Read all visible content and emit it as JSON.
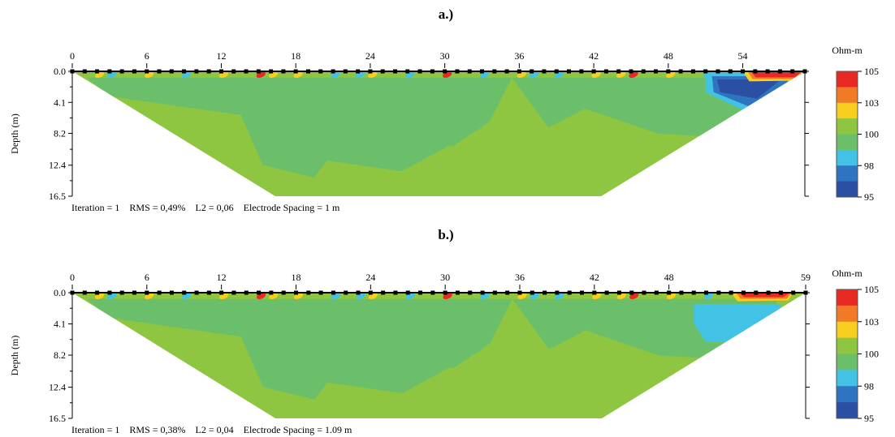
{
  "chart_data": [
    {
      "type": "heatmap",
      "panel_label": "a.)",
      "xlabel": "",
      "ylabel": "Depth (m)",
      "x_ticks": [
        "0",
        "6",
        "12",
        "18",
        "24",
        "30",
        "36",
        "42",
        "48",
        "54"
      ],
      "x_tick_values": [
        0,
        6,
        12,
        18,
        24,
        30,
        36,
        42,
        48,
        54
      ],
      "xlim": [
        0,
        59
      ],
      "y_ticks": [
        "0.0",
        "4.1",
        "8.2",
        "12.4",
        "16.5"
      ],
      "y_tick_values": [
        0.0,
        4.1,
        8.2,
        12.4,
        16.5
      ],
      "ylim": [
        0,
        16.5
      ],
      "electrode_count": 60,
      "info": "Iteration = 1    RMS = 0,49%    L2 = 0,06    Electrode Spacing = 1 m",
      "colorbar": {
        "title": "Ohm-m",
        "labels": [
          "105",
          "103",
          "100",
          "98",
          "95"
        ],
        "label_values": [
          105,
          103,
          100,
          98,
          95
        ],
        "colors": [
          "#e92a24",
          "#f07a25",
          "#f8ce1f",
          "#8ec641",
          "#6cbf6a",
          "#42c3e6",
          "#2f74c0",
          "#2a4fa3"
        ]
      },
      "anomalies": [
        {
          "name": "low-resistivity zone",
          "x_range": [
            51,
            58
          ],
          "depth_range": [
            0,
            5.5
          ],
          "value_range": [
            95,
            98
          ]
        },
        {
          "name": "high-resistivity surface zone",
          "x_range": [
            54,
            59
          ],
          "depth_range": [
            0,
            1.0
          ],
          "value_range": [
            103,
            105
          ]
        }
      ]
    },
    {
      "type": "heatmap",
      "panel_label": "b.)",
      "xlabel": "",
      "ylabel": "Depth (m)",
      "x_ticks": [
        "0",
        "6",
        "12",
        "18",
        "24",
        "30",
        "36",
        "42",
        "48",
        "59"
      ],
      "x_tick_values": [
        0,
        6,
        12,
        18,
        24,
        30,
        36,
        42,
        48,
        59
      ],
      "xlim": [
        0,
        59
      ],
      "y_ticks": [
        "0.0",
        "4.1",
        "8.2",
        "12.4",
        "16.5"
      ],
      "y_tick_values": [
        0.0,
        4.1,
        8.2,
        12.4,
        16.5
      ],
      "ylim": [
        0,
        16.5
      ],
      "electrode_count": 60,
      "info": "Iteration = 1    RMS = 0,38%    L2 = 0,04    Electrode Spacing = 1.09 m",
      "colorbar": {
        "title": "Ohm-m",
        "labels": [
          "105",
          "103",
          "100",
          "98",
          "95"
        ],
        "label_values": [
          105,
          103,
          100,
          98,
          95
        ],
        "colors": [
          "#e92a24",
          "#f07a25",
          "#f8ce1f",
          "#8ec641",
          "#6cbf6a",
          "#42c3e6",
          "#2f74c0",
          "#2a4fa3"
        ]
      },
      "anomalies": [
        {
          "name": "low-resistivity zone",
          "x_range": [
            50,
            57
          ],
          "depth_range": [
            1.5,
            6.5
          ],
          "value_range": [
            98,
            99
          ]
        },
        {
          "name": "high-resistivity surface zone",
          "x_range": [
            53,
            58
          ],
          "depth_range": [
            0,
            0.8
          ],
          "value_range": [
            103,
            105
          ]
        }
      ]
    }
  ]
}
